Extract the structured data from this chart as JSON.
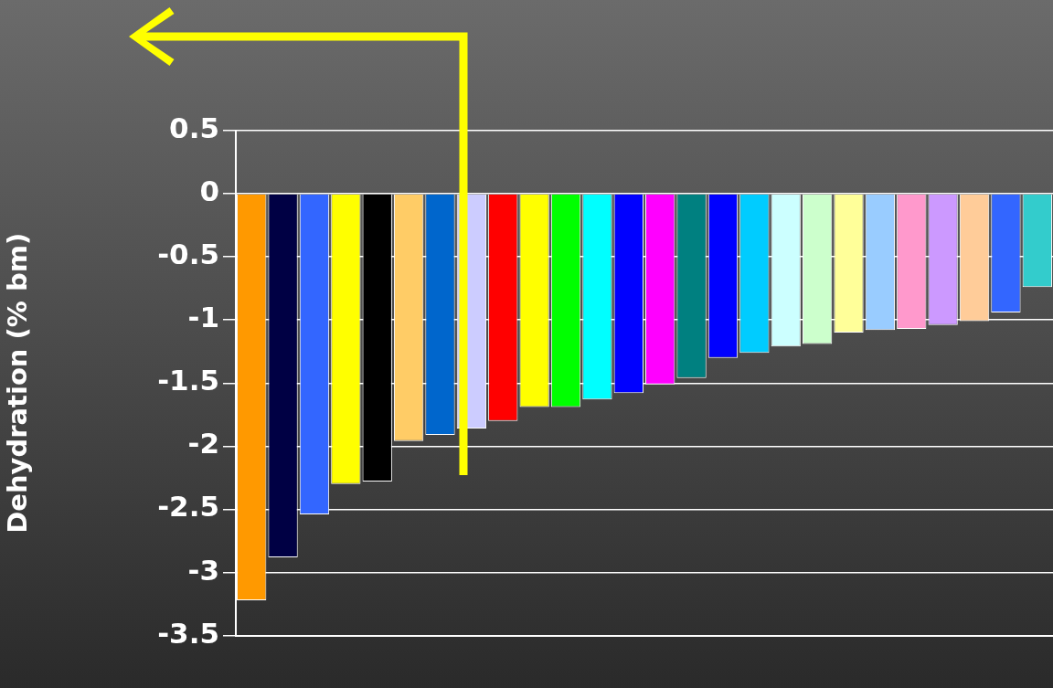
{
  "chart_data": {
    "type": "bar",
    "ylabel": "Dehydration (% bm)",
    "categories": [
      null,
      null,
      null,
      null,
      null,
      null,
      null,
      null,
      null,
      null,
      null,
      null,
      null,
      null,
      null,
      null,
      null,
      null,
      null,
      null,
      null,
      null,
      null,
      null,
      null,
      null
    ],
    "values": [
      -3.22,
      -2.88,
      -2.54,
      -2.3,
      -2.28,
      -1.96,
      -1.91,
      -1.86,
      -1.8,
      -1.69,
      -1.69,
      -1.63,
      -1.58,
      -1.51,
      -1.46,
      -1.3,
      -1.26,
      -1.21,
      -1.19,
      -1.1,
      -1.08,
      -1.07,
      -1.04,
      -1.01,
      -0.94,
      -0.74
    ],
    "colors": [
      "#ff9900",
      "#000044",
      "#3366ff",
      "#ffff00",
      "#000000",
      "#ffcc66",
      "#0066cc",
      "#ccccff",
      "#ff0000",
      "#ffff00",
      "#00ff00",
      "#00ffff",
      "#0000ff",
      "#ff00ff",
      "#008080",
      "#0000ff",
      "#00ccff",
      "#ccffff",
      "#ccffcc",
      "#ffff99",
      "#99ccff",
      "#ff99cc",
      "#cc99ff",
      "#ffcc99",
      "#3366ff",
      "#33cccc"
    ],
    "ylim": [
      -3.5,
      0.5
    ],
    "yticks": [
      -3.5,
      -3,
      -2.5,
      -2,
      -1.5,
      -1,
      -0.5,
      0,
      0.5
    ],
    "grid": "y",
    "legend": false
  }
}
